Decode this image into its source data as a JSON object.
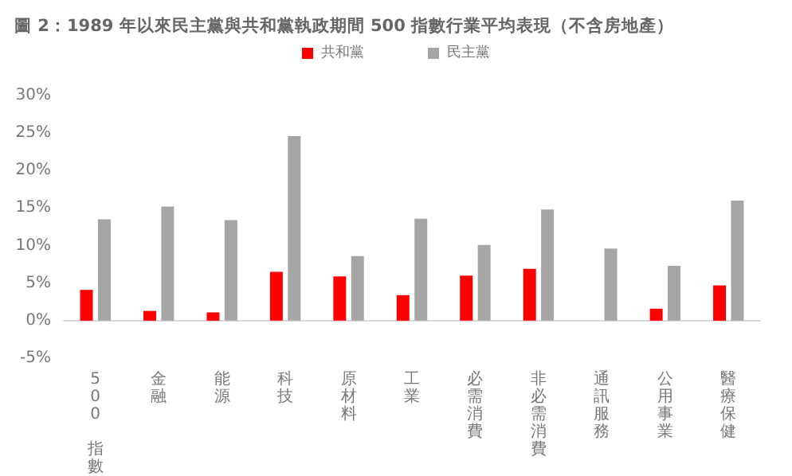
{
  "chart_data": {
    "type": "bar",
    "title": "圖 2：1989 年以來民主黨與共和黨執政期間 500 指數行業平均表現（不含房地產）",
    "categories": [
      "500 指數",
      "金融",
      "能源",
      "科技",
      "原材料",
      "工業",
      "必需消費",
      "非必需消費",
      "通訊服務",
      "公用事業",
      "醫療保健"
    ],
    "series": [
      {
        "name": "共和黨",
        "color": "#ff0000",
        "values": [
          4.1,
          1.3,
          1.1,
          6.5,
          5.9,
          3.4,
          6.0,
          6.9,
          null,
          1.6,
          4.7
        ]
      },
      {
        "name": "民主黨",
        "color": "#a5a5a5",
        "values": [
          13.5,
          15.2,
          13.4,
          24.6,
          8.6,
          13.6,
          10.1,
          14.8,
          9.6,
          7.3,
          16.0
        ]
      }
    ],
    "ylim": [
      -5,
      30
    ],
    "yticks": [
      {
        "value": -5,
        "label": "-5%"
      },
      {
        "value": 0,
        "label": "0%"
      },
      {
        "value": 5,
        "label": "5%"
      },
      {
        "value": 10,
        "label": "10%"
      },
      {
        "value": 15,
        "label": "15%"
      },
      {
        "value": 20,
        "label": "20%"
      },
      {
        "value": 25,
        "label": "25%"
      },
      {
        "value": 30,
        "label": "30%"
      }
    ],
    "legend": "top"
  }
}
